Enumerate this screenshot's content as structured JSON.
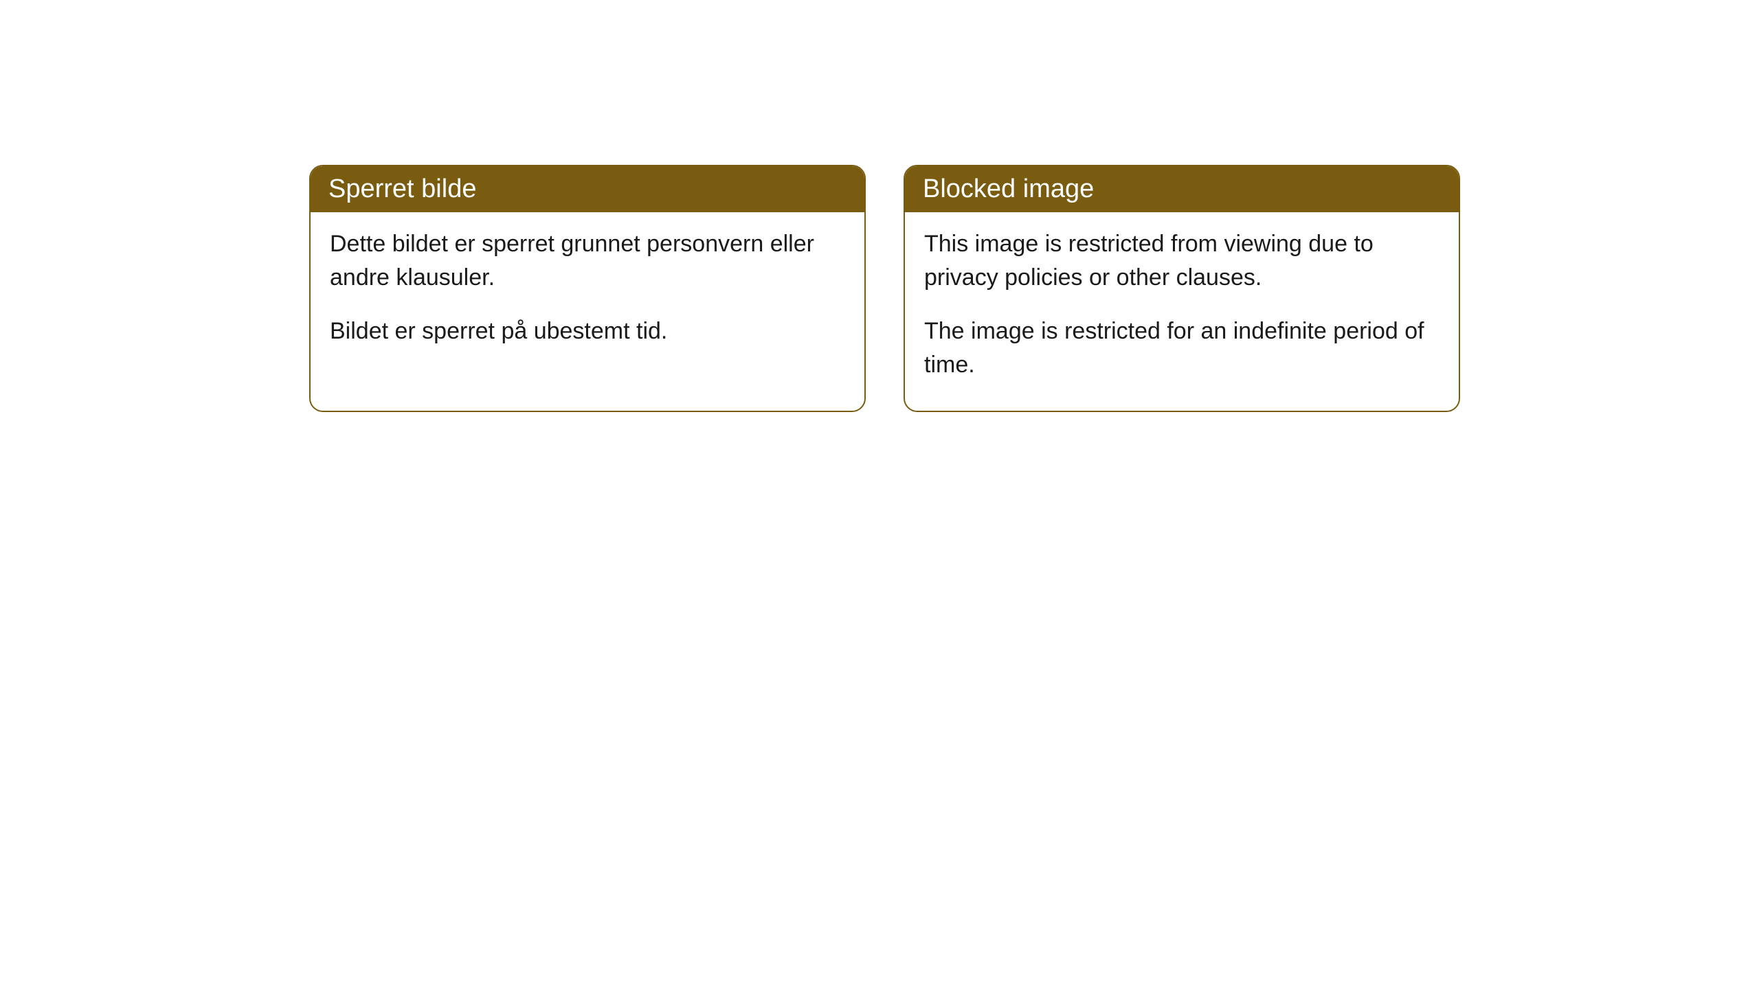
{
  "cards": [
    {
      "title": "Sperret bilde",
      "paragraph1": "Dette bildet er sperret grunnet personvern eller andre klausuler.",
      "paragraph2": "Bildet er sperret på ubestemt tid."
    },
    {
      "title": "Blocked image",
      "paragraph1": "This image is restricted from viewing due to privacy policies or other clauses.",
      "paragraph2": "The image is restricted for an indefinite period of time."
    }
  ],
  "style": {
    "header_background": "#7a5c10",
    "header_text_color": "#ffffff",
    "card_border_color": "#7a5c10",
    "card_background": "#ffffff",
    "body_text_color": "#1a1a1a",
    "border_radius": 20,
    "title_fontsize": 38,
    "body_fontsize": 34
  }
}
